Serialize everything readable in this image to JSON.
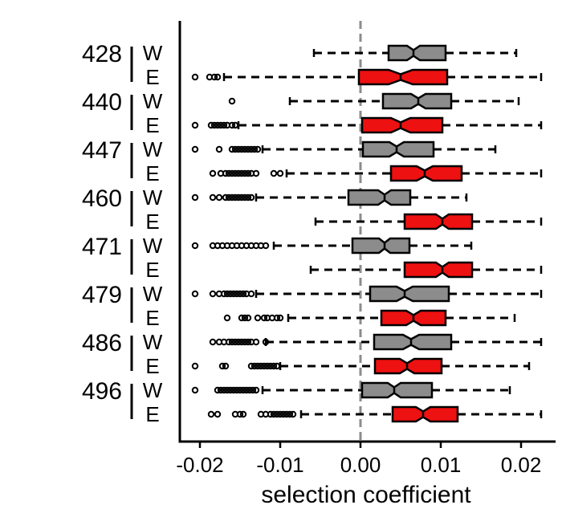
{
  "chart_data": {
    "type": "boxplot",
    "orientation": "horizontal",
    "xlabel": "selection coefficient",
    "xlim": [
      -0.0225,
      0.0243
    ],
    "xticks": [
      -0.02,
      -0.01,
      0.0,
      0.01,
      0.02
    ],
    "xtick_labels": [
      "-0.02",
      "-0.01",
      "0.00",
      "0.01",
      "0.02"
    ],
    "reference_line": 0.0,
    "notched": true,
    "colors": {
      "W": "#8c8c8c",
      "E": "#ee1111",
      "reference_line": "#8c8c8c"
    },
    "groups": [
      {
        "label": "428",
        "rows": [
          {
            "sub": "W",
            "whislo": -0.0058,
            "q1": 0.0035,
            "med": 0.0066,
            "q3": 0.0106,
            "whishi": 0.0194,
            "notch": [
              0.0058,
              0.0074
            ],
            "outliers": []
          },
          {
            "sub": "E",
            "whislo": -0.017,
            "q1": -0.0002,
            "med": 0.005,
            "q3": 0.0108,
            "whishi": 0.0225,
            "notch": [
              0.0035,
              0.0065
            ],
            "outliers": [
              -0.0206,
              -0.0188,
              -0.0182,
              -0.0178
            ]
          }
        ]
      },
      {
        "label": "440",
        "rows": [
          {
            "sub": "W",
            "whislo": -0.0088,
            "q1": 0.0028,
            "med": 0.0072,
            "q3": 0.0113,
            "whishi": 0.0197,
            "notch": [
              0.0063,
              0.0081
            ],
            "outliers": [
              -0.016
            ]
          },
          {
            "sub": "E",
            "whislo": -0.0152,
            "q1": 0.0002,
            "med": 0.005,
            "q3": 0.0102,
            "whishi": 0.0225,
            "notch": [
              0.0038,
              0.0062
            ],
            "outliers": [
              -0.0206,
              -0.0186,
              -0.0182,
              -0.0178,
              -0.0174,
              -0.017,
              -0.0166,
              -0.016,
              -0.0156
            ]
          }
        ]
      },
      {
        "label": "447",
        "rows": [
          {
            "sub": "W",
            "whislo": -0.0122,
            "q1": 0.0003,
            "med": 0.0045,
            "q3": 0.0091,
            "whishi": 0.0168,
            "notch": [
              0.0036,
              0.0054
            ],
            "outliers": [
              -0.0206,
              -0.0176,
              -0.016,
              -0.0156,
              -0.0152,
              -0.0148,
              -0.0144,
              -0.014,
              -0.0136,
              -0.0132,
              -0.0128
            ]
          },
          {
            "sub": "E",
            "whislo": -0.0092,
            "q1": 0.0038,
            "med": 0.008,
            "q3": 0.0126,
            "whishi": 0.0225,
            "notch": [
              0.007,
              0.009
            ],
            "outliers": [
              -0.0184,
              -0.0174,
              -0.0168,
              -0.0164,
              -0.016,
              -0.0156,
              -0.0152,
              -0.0148,
              -0.0144,
              -0.014,
              -0.0136,
              -0.013,
              -0.0108,
              -0.01
            ]
          }
        ]
      },
      {
        "label": "460",
        "rows": [
          {
            "sub": "W",
            "whislo": -0.013,
            "q1": -0.0015,
            "med": 0.003,
            "q3": 0.0062,
            "whishi": 0.0132,
            "notch": [
              0.0022,
              0.0038
            ],
            "outliers": [
              -0.0206,
              -0.0184,
              -0.0176,
              -0.0168,
              -0.0164,
              -0.016,
              -0.0156,
              -0.0152,
              -0.0148,
              -0.0144,
              -0.014,
              -0.0136
            ]
          },
          {
            "sub": "E",
            "whislo": -0.0056,
            "q1": 0.0055,
            "med": 0.0102,
            "q3": 0.0139,
            "whishi": 0.0225,
            "notch": [
              0.0094,
              0.011
            ],
            "outliers": []
          }
        ]
      },
      {
        "label": "471",
        "rows": [
          {
            "sub": "W",
            "whislo": -0.0108,
            "q1": -0.001,
            "med": 0.003,
            "q3": 0.0061,
            "whishi": 0.0138,
            "notch": [
              0.0023,
              0.0037
            ],
            "outliers": [
              -0.0206,
              -0.0184,
              -0.0178,
              -0.0172,
              -0.0166,
              -0.016,
              -0.0154,
              -0.0148,
              -0.0142,
              -0.0136,
              -0.013,
              -0.0124,
              -0.0118
            ]
          },
          {
            "sub": "E",
            "whislo": -0.0062,
            "q1": 0.0055,
            "med": 0.0102,
            "q3": 0.0139,
            "whishi": 0.0225,
            "notch": [
              0.0094,
              0.011
            ],
            "outliers": []
          }
        ]
      },
      {
        "label": "479",
        "rows": [
          {
            "sub": "W",
            "whislo": -0.013,
            "q1": 0.0012,
            "med": 0.0055,
            "q3": 0.011,
            "whishi": 0.0225,
            "notch": [
              0.0045,
              0.0065
            ],
            "outliers": [
              -0.0206,
              -0.0184,
              -0.0176,
              -0.017,
              -0.0166,
              -0.0162,
              -0.0158,
              -0.0154,
              -0.015,
              -0.0146,
              -0.0142,
              -0.0136
            ]
          },
          {
            "sub": "E",
            "whislo": -0.009,
            "q1": 0.0026,
            "med": 0.0066,
            "q3": 0.0106,
            "whishi": 0.0192,
            "notch": [
              0.0057,
              0.0075
            ],
            "outliers": [
              -0.0166,
              -0.0148,
              -0.0144,
              -0.014,
              -0.0128,
              -0.012,
              -0.0116,
              -0.011,
              -0.0104,
              -0.01
            ]
          }
        ]
      },
      {
        "label": "486",
        "rows": [
          {
            "sub": "W",
            "whislo": -0.0118,
            "q1": 0.0017,
            "med": 0.0063,
            "q3": 0.0113,
            "whishi": 0.0225,
            "notch": [
              0.0053,
              0.0073
            ],
            "outliers": [
              -0.0184,
              -0.0176,
              -0.017,
              -0.0164,
              -0.016,
              -0.0156,
              -0.0152,
              -0.0148,
              -0.0144,
              -0.014,
              -0.0136,
              -0.013,
              -0.0118
            ]
          },
          {
            "sub": "E",
            "whislo": -0.01,
            "q1": 0.0018,
            "med": 0.0058,
            "q3": 0.0101,
            "whishi": 0.021,
            "notch": [
              0.0049,
              0.0067
            ],
            "outliers": [
              -0.0206,
              -0.0172,
              -0.0168,
              -0.0136,
              -0.0132,
              -0.0128,
              -0.0124,
              -0.012,
              -0.0116,
              -0.0112,
              -0.0108,
              -0.0104
            ]
          }
        ]
      },
      {
        "label": "496",
        "rows": [
          {
            "sub": "W",
            "whislo": -0.0122,
            "q1": 0.0002,
            "med": 0.0042,
            "q3": 0.0089,
            "whishi": 0.0186,
            "notch": [
              0.0034,
              0.005
            ],
            "outliers": [
              -0.0206,
              -0.0178,
              -0.0174,
              -0.017,
              -0.0166,
              -0.0162,
              -0.0158,
              -0.0154,
              -0.015,
              -0.0146,
              -0.0142,
              -0.0138,
              -0.0134,
              -0.013
            ]
          },
          {
            "sub": "E",
            "whislo": -0.0074,
            "q1": 0.004,
            "med": 0.0078,
            "q3": 0.0121,
            "whishi": 0.0225,
            "notch": [
              0.0069,
              0.0087
            ],
            "outliers": [
              -0.0186,
              -0.0178,
              -0.0156,
              -0.015,
              -0.0146,
              -0.0124,
              -0.0118,
              -0.0112,
              -0.0108,
              -0.0104,
              -0.01,
              -0.0096,
              -0.0092,
              -0.0088,
              -0.0084
            ]
          }
        ]
      }
    ]
  }
}
